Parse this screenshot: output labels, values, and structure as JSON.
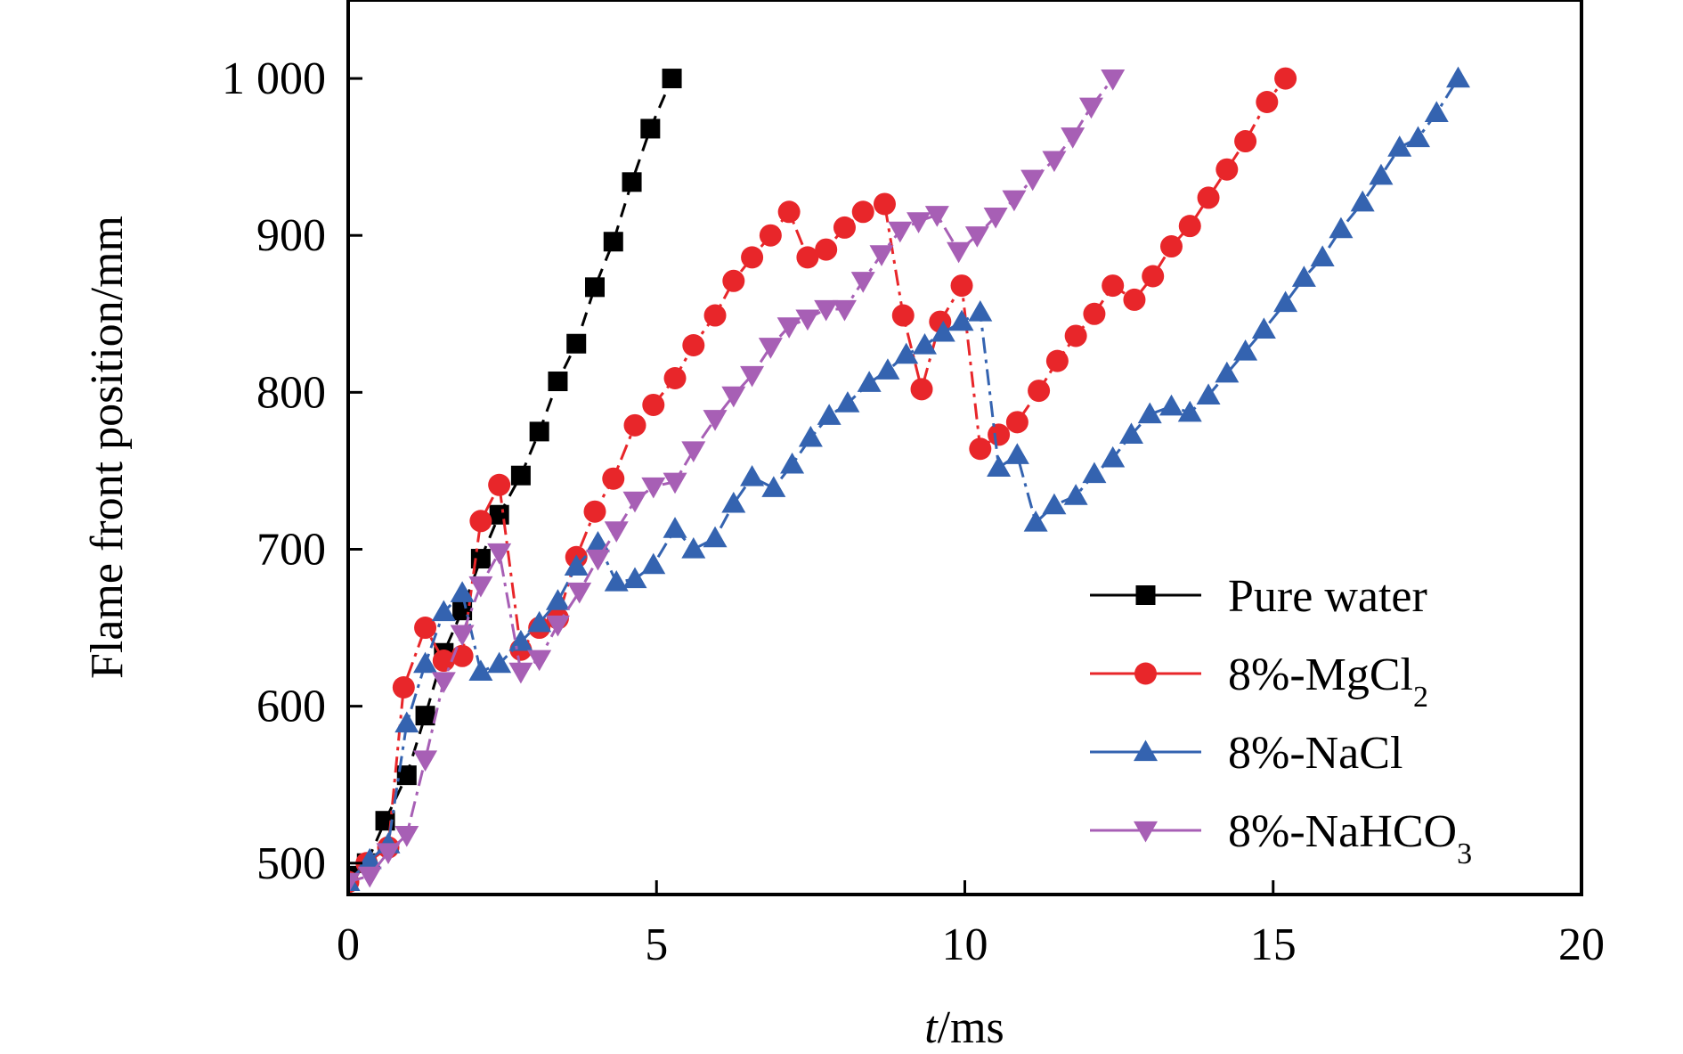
{
  "chart_data": {
    "type": "line",
    "title": "",
    "xlabel": {
      "italic": "t",
      "rest": "/ms"
    },
    "ylabel": "Flame front position/mm",
    "xlim": [
      0,
      20
    ],
    "ylim": [
      480,
      1050
    ],
    "xticks": [
      0,
      5,
      10,
      15,
      20
    ],
    "xtick_labels": [
      "0",
      "5",
      "10",
      "15",
      "20"
    ],
    "yticks": [
      500,
      600,
      700,
      800,
      900,
      1000
    ],
    "ytick_labels": [
      "500",
      "600",
      "700",
      "800",
      "900",
      "1 000"
    ],
    "grid": false,
    "legend_position": "lower-right",
    "series": [
      {
        "name": "Pure water",
        "legend": {
          "main": "Pure water",
          "sub": "",
          "tail": ""
        },
        "color": "#000000",
        "marker": "square",
        "line": "dash",
        "x": [
          0,
          0.3,
          0.6,
          0.95,
          1.25,
          1.55,
          1.85,
          2.15,
          2.45,
          2.8,
          3.1,
          3.4,
          3.7,
          4.0,
          4.3,
          4.6,
          4.9,
          5.25
        ],
        "y": [
          492,
          500,
          527,
          556,
          594,
          634,
          661,
          694,
          722,
          747,
          775,
          807,
          831,
          867,
          896,
          934,
          968,
          1000
        ]
      },
      {
        "name": "8%-MgCl2",
        "legend": {
          "main": "8%-MgCl",
          "sub": "2",
          "tail": ""
        },
        "color": "#e8262a",
        "marker": "circle",
        "line": "dashdot",
        "x": [
          0,
          0.3,
          0.65,
          0.9,
          1.25,
          1.55,
          1.85,
          2.15,
          2.45,
          2.8,
          3.1,
          3.4,
          3.7,
          4.0,
          4.3,
          4.65,
          4.95,
          5.3,
          5.6,
          5.95,
          6.25,
          6.55,
          6.85,
          7.15,
          7.45,
          7.75,
          8.05,
          8.35,
          8.7,
          9.0,
          9.3,
          9.6,
          9.95,
          10.25,
          10.55,
          10.85,
          11.2,
          11.5,
          11.8,
          12.1,
          12.4,
          12.75,
          13.05,
          13.35,
          13.65,
          13.95,
          14.25,
          14.55,
          14.9,
          15.2
        ],
        "y": [
          488,
          500,
          510,
          612,
          650,
          629,
          632,
          718,
          741,
          636,
          650,
          656,
          695,
          724,
          745,
          779,
          792,
          809,
          830,
          849,
          871,
          886,
          900,
          915,
          886,
          891,
          905,
          915,
          920,
          849,
          802,
          845,
          868,
          764,
          773,
          781,
          801,
          820,
          836,
          850,
          868,
          859,
          874,
          893,
          906,
          924,
          942,
          960,
          985,
          1000
        ]
      },
      {
        "name": "8%-NaCl",
        "legend": {
          "main": "8%-NaCl",
          "sub": "",
          "tail": ""
        },
        "color": "#3463b0",
        "marker": "triangle-up",
        "line": "dashdot",
        "x": [
          0,
          0.35,
          0.65,
          0.95,
          1.25,
          1.55,
          1.85,
          2.15,
          2.45,
          2.8,
          3.1,
          3.4,
          3.7,
          4.05,
          4.35,
          4.65,
          4.95,
          5.3,
          5.6,
          5.95,
          6.25,
          6.55,
          6.9,
          7.2,
          7.5,
          7.8,
          8.1,
          8.45,
          8.75,
          9.05,
          9.35,
          9.65,
          9.95,
          10.25,
          10.55,
          10.85,
          11.15,
          11.45,
          11.8,
          12.1,
          12.4,
          12.7,
          13.0,
          13.35,
          13.65,
          13.95,
          14.25,
          14.55,
          14.85,
          15.2,
          15.5,
          15.8,
          16.1,
          16.45,
          16.75,
          17.05,
          17.35,
          17.65,
          18.0
        ],
        "y": [
          488,
          502,
          512,
          589,
          627,
          660,
          672,
          622,
          627,
          641,
          653,
          667,
          689,
          704,
          679,
          681,
          690,
          713,
          700,
          707,
          729,
          746,
          739,
          754,
          771,
          785,
          793,
          806,
          814,
          824,
          830,
          838,
          845,
          851,
          752,
          760,
          717,
          728,
          734,
          748,
          758,
          773,
          786,
          791,
          787,
          798,
          812,
          826,
          840,
          857,
          873,
          886,
          904,
          921,
          938,
          956,
          962,
          978,
          1000
        ]
      },
      {
        "name": "8%-NaHCO3",
        "legend": {
          "main": "8%-NaHCO",
          "sub": "3",
          "tail": ""
        },
        "color": "#a75fb5",
        "marker": "triangle-down",
        "line": "dashdot",
        "x": [
          0,
          0.35,
          0.65,
          0.95,
          1.25,
          1.55,
          1.85,
          2.15,
          2.45,
          2.8,
          3.1,
          3.4,
          3.75,
          4.05,
          4.35,
          4.65,
          4.95,
          5.3,
          5.6,
          5.95,
          6.25,
          6.55,
          6.85,
          7.15,
          7.45,
          7.75,
          8.05,
          8.35,
          8.65,
          8.95,
          9.25,
          9.55,
          9.9,
          10.2,
          10.5,
          10.8,
          11.1,
          11.45,
          11.75,
          12.05,
          12.4
        ],
        "y": [
          488,
          492,
          507,
          518,
          566,
          616,
          646,
          677,
          698,
          622,
          630,
          652,
          673,
          694,
          712,
          731,
          740,
          743,
          763,
          783,
          798,
          811,
          829,
          842,
          847,
          853,
          853,
          871,
          888,
          903,
          909,
          913,
          890,
          900,
          912,
          923,
          936,
          948,
          963,
          982,
          1000
        ]
      }
    ]
  }
}
